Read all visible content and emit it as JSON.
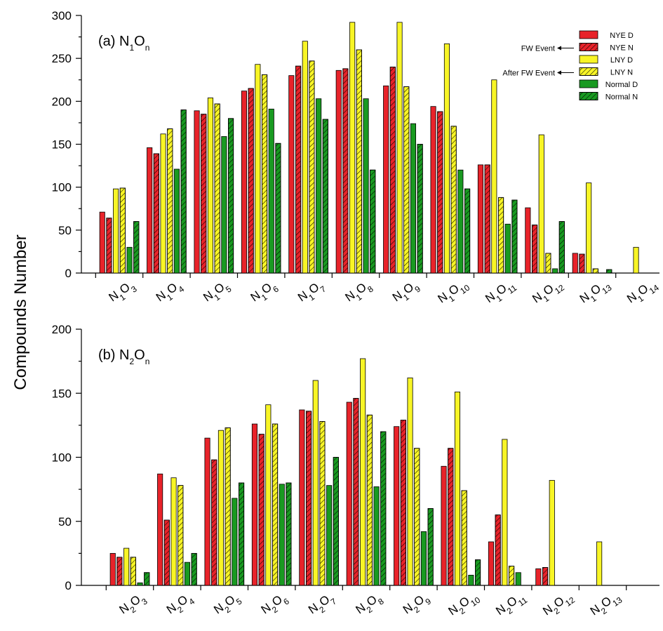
{
  "colors": {
    "nye": "#e8232a",
    "lny": "#f8f526",
    "normal": "#199a21"
  },
  "ylabel": "Compounds Number",
  "legend": {
    "entries": [
      {
        "label": "NYE D",
        "color": "#e8232a",
        "hatched": false
      },
      {
        "label": "NYE N",
        "color": "#e8232a",
        "hatched": true
      },
      {
        "label": "LNY D",
        "color": "#f8f526",
        "hatched": false
      },
      {
        "label": "LNY N",
        "color": "#f8f526",
        "hatched": true
      },
      {
        "label": "Normal D",
        "color": "#199a21",
        "hatched": false
      },
      {
        "label": "Normal N",
        "color": "#199a21",
        "hatched": true
      }
    ],
    "annotations": [
      "FW Event",
      "After FW Event"
    ]
  },
  "chart_data": [
    {
      "type": "bar",
      "title": "(a) N1On",
      "ylim": [
        0,
        300
      ],
      "yticks": [
        0,
        50,
        100,
        150,
        200,
        250,
        300
      ],
      "categories": [
        "N1O3",
        "N1O4",
        "N1O5",
        "N1O6",
        "N1O7",
        "N1O8",
        "N1O9",
        "N1O10",
        "N1O11",
        "N1O12",
        "N1O13",
        "N1O14"
      ],
      "series": [
        {
          "name": "NYE D",
          "values": [
            71,
            146,
            189,
            212,
            230,
            236,
            218,
            194,
            126,
            76,
            23,
            null
          ]
        },
        {
          "name": "NYE N",
          "values": [
            64,
            139,
            185,
            215,
            241,
            238,
            240,
            188,
            126,
            56,
            22,
            null
          ]
        },
        {
          "name": "LNY D",
          "values": [
            98,
            162,
            204,
            243,
            270,
            292,
            292,
            267,
            225,
            161,
            105,
            30
          ]
        },
        {
          "name": "LNY N",
          "values": [
            99,
            168,
            197,
            231,
            247,
            260,
            217,
            171,
            88,
            23,
            5,
            null
          ]
        },
        {
          "name": "Normal D",
          "values": [
            30,
            121,
            159,
            191,
            203,
            203,
            174,
            120,
            57,
            5,
            null,
            null
          ]
        },
        {
          "name": "Normal N",
          "values": [
            60,
            190,
            180,
            151,
            179,
            120,
            150,
            98,
            85,
            60,
            4,
            null
          ]
        }
      ]
    },
    {
      "type": "bar",
      "title": "(b) N2On",
      "ylim": [
        0,
        200
      ],
      "yticks": [
        0,
        50,
        100,
        150,
        200
      ],
      "categories": [
        "N2O3",
        "N2O4",
        "N2O5",
        "N2O6",
        "N2O7",
        "N2O8",
        "N2O9",
        "N2O10",
        "N2O11",
        "N2O12",
        "N2O13"
      ],
      "series": [
        {
          "name": "NYE D",
          "values": [
            25,
            87,
            115,
            126,
            137,
            143,
            124,
            93,
            34,
            13,
            null
          ]
        },
        {
          "name": "NYE N",
          "values": [
            22,
            51,
            98,
            118,
            136,
            146,
            129,
            107,
            55,
            14,
            null
          ]
        },
        {
          "name": "LNY D",
          "values": [
            29,
            84,
            121,
            141,
            160,
            177,
            162,
            151,
            114,
            82,
            34
          ]
        },
        {
          "name": "LNY N",
          "values": [
            22,
            78,
            123,
            126,
            128,
            133,
            107,
            74,
            15,
            null,
            null
          ]
        },
        {
          "name": "Normal D",
          "values": [
            2,
            18,
            68,
            79,
            78,
            77,
            42,
            8,
            10,
            null,
            null
          ]
        },
        {
          "name": "Normal N",
          "values": [
            10,
            25,
            80,
            80,
            100,
            120,
            60,
            20,
            null,
            null,
            null
          ]
        }
      ]
    }
  ]
}
